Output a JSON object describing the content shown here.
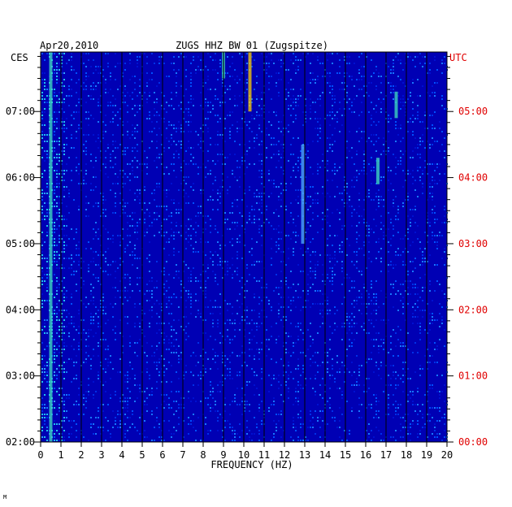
{
  "chart_data": {
    "type": "heatmap",
    "header_left": "Apr20,2010",
    "title": "ZUGS HHZ BW 01 (Zugspitze)",
    "xlabel": "FREQUENCY (HZ)",
    "left_axis_label": "CES",
    "right_axis_label": "UTC",
    "x_ticks": [
      "0",
      "1",
      "2",
      "3",
      "4",
      "5",
      "6",
      "7",
      "8",
      "9",
      "10",
      "11",
      "12",
      "13",
      "14",
      "15",
      "16",
      "17",
      "18",
      "19",
      "20"
    ],
    "xlim": [
      0,
      20
    ],
    "left_time_ticks": [
      "07:00",
      "06:00",
      "05:00",
      "04:00",
      "03:00",
      "02:00"
    ],
    "right_time_ticks": [
      "05:00",
      "04:00",
      "03:00",
      "02:00",
      "01:00",
      "00:00"
    ],
    "ylim_utc_hours": [
      0,
      5.9
    ],
    "colors": {
      "background": "#0000b4",
      "axis_text": "#000000",
      "utc_text": "#e00000",
      "grid": "#000000"
    },
    "features": [
      {
        "x_hz": 0.5,
        "y_utc_hours": [
          0,
          5.9
        ],
        "intensity": "high",
        "note_visible": false
      },
      {
        "x_hz": 9.0,
        "y_utc_hours": [
          5.5,
          5.9
        ],
        "intensity": "high"
      },
      {
        "x_hz": 10.3,
        "y_utc_hours": [
          5.0,
          5.9
        ],
        "intensity": "very high"
      },
      {
        "x_hz": 12.9,
        "y_utc_hours": [
          3.0,
          4.5
        ],
        "intensity": "medium"
      },
      {
        "x_hz": 16.6,
        "y_utc_hours": [
          3.9,
          4.3
        ],
        "intensity": "high"
      },
      {
        "x_hz": 17.5,
        "y_utc_hours": [
          4.9,
          5.3
        ],
        "intensity": "high"
      }
    ]
  },
  "corner_mark": "M"
}
